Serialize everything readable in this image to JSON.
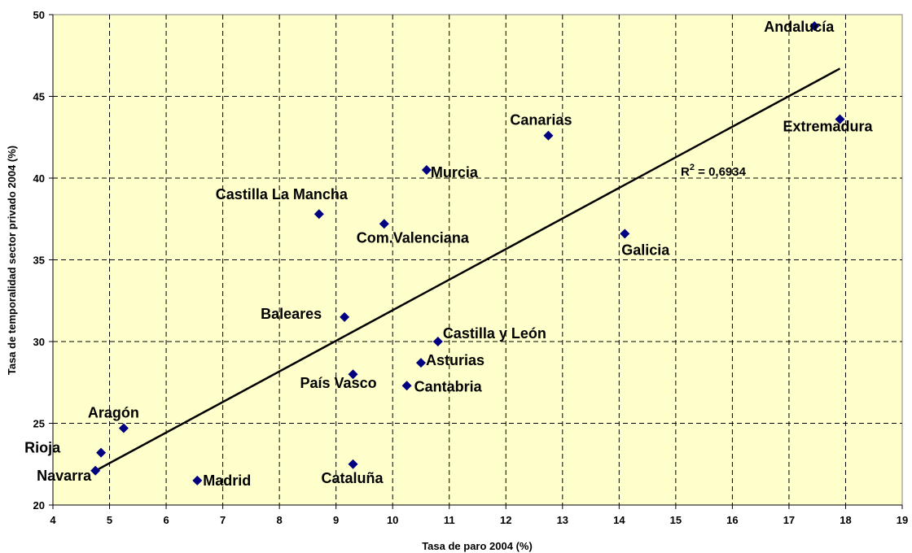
{
  "chart_data": {
    "type": "scatter",
    "xlabel": "Tasa de paro 2004 (%)",
    "ylabel": "Tasa de temporalidad sector privado 2004 (%)",
    "xlim": [
      4,
      19
    ],
    "ylim": [
      20,
      50
    ],
    "x_ticks": [
      4,
      5,
      6,
      7,
      8,
      9,
      10,
      11,
      12,
      13,
      14,
      15,
      16,
      17,
      18,
      19
    ],
    "y_ticks": [
      20,
      25,
      30,
      35,
      40,
      45,
      50
    ],
    "grid": true,
    "plot_background": "#ffffcc",
    "marker_color": "#000080",
    "trendline": {
      "x1": 4.7,
      "y1": 22.0,
      "x2": 17.9,
      "y2": 46.7,
      "r2_label": "R",
      "r2_sup": "2",
      "r2_value": " = 0,6934"
    },
    "points": [
      {
        "label": "Andalucía",
        "x": 17.45,
        "y": 49.3
      },
      {
        "label": "Extremadura",
        "x": 17.9,
        "y": 43.6
      },
      {
        "label": "Canarias",
        "x": 12.75,
        "y": 42.6
      },
      {
        "label": "Murcia",
        "x": 10.6,
        "y": 40.5
      },
      {
        "label": "Castilla La Mancha",
        "x": 8.7,
        "y": 37.8
      },
      {
        "label": "Com.Valenciana",
        "x": 9.85,
        "y": 37.2
      },
      {
        "label": "Galicia",
        "x": 14.1,
        "y": 36.6
      },
      {
        "label": "Baleares",
        "x": 9.15,
        "y": 31.5
      },
      {
        "label": "Castilla y León",
        "x": 10.8,
        "y": 30.0
      },
      {
        "label": "Asturias",
        "x": 10.5,
        "y": 28.7
      },
      {
        "label": "País Vasco",
        "x": 9.3,
        "y": 28.0
      },
      {
        "label": "Cantabria",
        "x": 10.25,
        "y": 27.3
      },
      {
        "label": "Aragón",
        "x": 5.25,
        "y": 24.7
      },
      {
        "label": "Rioja",
        "x": 4.85,
        "y": 23.2
      },
      {
        "label": "Navarra",
        "x": 4.75,
        "y": 22.1
      },
      {
        "label": "Madrid",
        "x": 6.55,
        "y": 21.5
      },
      {
        "label": "Cataluña",
        "x": 9.3,
        "y": 22.5
      }
    ]
  }
}
